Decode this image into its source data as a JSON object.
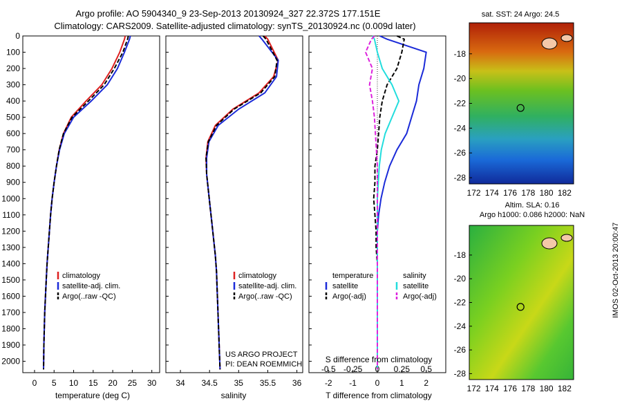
{
  "header": {
    "line1": "Argo profile: AO 5904340_9 23-Sep-2013 20130924_327 22.372S 177.151E",
    "line2": "Climatology: CARS2009. Satellite-adjusted climatology: synTS_20130924.nc (0.009d later)"
  },
  "colors": {
    "climatology": "#dd2020",
    "satellite": "#1a2ad8",
    "argo": "#000000",
    "salinity_satellite": "#22dddd",
    "salinity_argo": "#dd22dd"
  },
  "depth_axis": {
    "ticks": [
      0,
      100,
      200,
      300,
      400,
      500,
      600,
      700,
      800,
      900,
      1000,
      1100,
      1200,
      1300,
      1400,
      1500,
      1600,
      1700,
      1800,
      1900,
      2000
    ],
    "range": [
      0,
      2070
    ]
  },
  "panels": {
    "temperature": {
      "xlabel": "temperature (deg C)",
      "xticks": [
        0,
        5,
        10,
        15,
        20,
        25,
        30
      ],
      "xlim": [
        -3,
        32
      ],
      "legend": [
        "climatology",
        "satellite-adj. clim.",
        "Argo(..raw -QC)"
      ]
    },
    "salinity": {
      "xlabel": "salinity",
      "xticks": [
        34,
        34.5,
        35,
        35.5,
        36
      ],
      "tick_labels": [
        "34",
        "34.5",
        "35",
        "35.5",
        "36"
      ],
      "xlim": [
        33.75,
        36.1
      ],
      "legend": [
        "climatology",
        "satellite-adj. clim.",
        "Argo(..raw -QC)"
      ],
      "credit1": "US ARGO PROJECT",
      "credit2": "PI: DEAN ROEMMICH"
    },
    "difference": {
      "xlabel": "T difference from climatology",
      "top_label": "S difference from climatology",
      "t_ticks": [
        -2,
        -1,
        0,
        1,
        2
      ],
      "t_tick_labels": [
        "-2",
        "-1",
        "0",
        "1",
        "2"
      ],
      "s_ticks": [
        -0.5,
        -0.25,
        0,
        0.25,
        0.5
      ],
      "s_tick_labels": [
        "-0.5",
        "-0.25",
        "0",
        "0.25",
        "0.5"
      ],
      "xlim": [
        -2.8,
        2.8
      ],
      "legend_t_title": "temperature",
      "legend_s_title": "salinity",
      "legend_t": [
        "satellite",
        "Argo(-adj)"
      ],
      "legend_s": [
        "satellite",
        "Argo(-adj)"
      ]
    }
  },
  "maps": {
    "sst_title": "sat. SST: 24 Argo: 24.5",
    "sla_title1": "Altim. SLA: 0.16",
    "sla_title2": "Argo h1000: 0.086 h2000: NaN",
    "lon_ticks": [
      172,
      174,
      176,
      178,
      180,
      182
    ],
    "lat_ticks": [
      -18,
      -20,
      -22,
      -24,
      -26,
      -28
    ],
    "lon_range": [
      171.5,
      183
    ],
    "lat_range": [
      -15.5,
      -28.5
    ],
    "argo_position": {
      "lon": 177.151,
      "lat": -22.372
    }
  },
  "side_label": "IMOS 02-Oct-2013 20:00:47",
  "chart_data": [
    {
      "type": "line",
      "ylabel": "",
      "xlabel": "temperature (deg C)",
      "ylim": [
        0,
        2070
      ],
      "xlim": [
        -3,
        32
      ],
      "series": [
        {
          "name": "climatology",
          "x": [
            23.2,
            23.0,
            21.8,
            19.8,
            17.2,
            13.2,
            9.4,
            7.4,
            6.3,
            5.6,
            5.0,
            4.5,
            4.1,
            3.8,
            3.5,
            3.2,
            3.0,
            2.8,
            2.6,
            2.5,
            2.4,
            2.3
          ],
          "y": [
            0,
            20,
            100,
            200,
            300,
            400,
            500,
            600,
            700,
            800,
            900,
            1000,
            1100,
            1200,
            1300,
            1400,
            1500,
            1600,
            1700,
            1800,
            1900,
            2050
          ]
        },
        {
          "name": "satellite-adj. clim.",
          "x": [
            24.5,
            24.3,
            23.0,
            21.2,
            18.6,
            14.5,
            10.0,
            7.6,
            6.4,
            5.6,
            5.0,
            4.5,
            4.1,
            3.8,
            3.5,
            3.2,
            3.0,
            2.8,
            2.6,
            2.5,
            2.4,
            2.3
          ],
          "y": [
            0,
            20,
            100,
            200,
            300,
            400,
            500,
            600,
            700,
            800,
            900,
            1000,
            1100,
            1200,
            1300,
            1400,
            1500,
            1600,
            1700,
            1800,
            1900,
            2050
          ]
        },
        {
          "name": "Argo(..raw -QC)",
          "x": [
            24.0,
            23.8,
            22.6,
            20.4,
            17.8,
            13.8,
            9.6,
            7.4,
            6.3,
            5.6,
            5.0,
            4.5,
            4.1,
            3.8,
            3.5,
            3.2,
            3.0,
            2.8,
            2.6,
            2.5,
            2.4,
            2.3
          ],
          "y": [
            0,
            20,
            100,
            200,
            300,
            400,
            500,
            600,
            700,
            800,
            900,
            1000,
            1100,
            1200,
            1300,
            1400,
            1500,
            1600,
            1700,
            1800,
            1900,
            2050
          ]
        }
      ]
    },
    {
      "type": "line",
      "xlabel": "salinity",
      "ylim": [
        0,
        2070
      ],
      "xlim": [
        33.75,
        36.1
      ],
      "series": [
        {
          "name": "climatology",
          "x": [
            35.45,
            35.5,
            35.68,
            35.6,
            35.35,
            34.9,
            34.6,
            34.47,
            34.44,
            34.45,
            34.48,
            34.51,
            34.54,
            34.57,
            34.6,
            34.62,
            34.63,
            34.64,
            34.65,
            34.66,
            34.67,
            34.68
          ],
          "y": [
            0,
            20,
            150,
            250,
            350,
            450,
            550,
            650,
            750,
            850,
            950,
            1050,
            1150,
            1250,
            1350,
            1450,
            1550,
            1650,
            1750,
            1850,
            1950,
            2050
          ]
        },
        {
          "name": "satellite-adj. clim.",
          "x": [
            35.35,
            35.4,
            35.68,
            35.65,
            35.45,
            35.0,
            34.65,
            34.49,
            34.45,
            34.45,
            34.48,
            34.51,
            34.54,
            34.57,
            34.6,
            34.62,
            34.63,
            34.64,
            34.65,
            34.66,
            34.67,
            34.68
          ],
          "y": [
            0,
            20,
            150,
            250,
            350,
            450,
            550,
            650,
            750,
            850,
            950,
            1050,
            1150,
            1250,
            1350,
            1450,
            1550,
            1650,
            1750,
            1850,
            1950,
            2050
          ]
        },
        {
          "name": "Argo(..raw -QC)",
          "x": [
            35.42,
            35.47,
            35.66,
            35.62,
            35.38,
            34.92,
            34.62,
            34.48,
            34.44,
            34.45,
            34.48,
            34.51,
            34.54,
            34.57,
            34.6,
            34.62,
            34.63,
            34.64,
            34.65,
            34.66,
            34.67,
            34.68
          ],
          "y": [
            0,
            20,
            150,
            250,
            350,
            450,
            550,
            650,
            750,
            850,
            950,
            1050,
            1150,
            1250,
            1350,
            1450,
            1550,
            1650,
            1750,
            1850,
            1950,
            2050
          ]
        }
      ]
    },
    {
      "type": "line",
      "xlabel": "T difference from climatology",
      "ylim": [
        0,
        2070
      ],
      "xlim": [
        -2.8,
        2.8
      ],
      "series": [
        {
          "name": "satellite",
          "x": [
            0.1,
            0.4,
            2.0,
            1.9,
            1.7,
            1.6,
            1.4,
            1.2,
            0.8,
            0.5,
            0.3,
            0.15,
            0.05,
            0,
            0,
            0,
            0,
            0,
            0,
            0,
            0
          ],
          "y": [
            0,
            20,
            100,
            200,
            300,
            400,
            500,
            600,
            700,
            800,
            900,
            1000,
            1100,
            1200,
            1300,
            1400,
            1500,
            1600,
            1700,
            1800,
            2050
          ]
        },
        {
          "name": "Argo(-adj)",
          "x": [
            0.8,
            1.1,
            1.0,
            0.8,
            0.4,
            0.2,
            0.1,
            0.05,
            0,
            -0.1,
            -0.1,
            -0.15,
            -0.1,
            -0.05,
            -0.05,
            0,
            0,
            0,
            0,
            0,
            0
          ],
          "y": [
            0,
            20,
            100,
            200,
            300,
            400,
            500,
            600,
            700,
            800,
            900,
            1000,
            1100,
            1200,
            1300,
            1400,
            1500,
            1600,
            1700,
            1800,
            2050
          ]
        }
      ]
    },
    {
      "type": "line",
      "xlabel": "S difference from climatology",
      "ylim": [
        0,
        2070
      ],
      "xlim": [
        -0.7,
        0.7
      ],
      "series": [
        {
          "name": "satellite",
          "x": [
            -0.05,
            -0.03,
            0.0,
            0.05,
            0.15,
            0.22,
            0.15,
            0.08,
            0.04,
            0.02,
            0.01,
            0,
            0,
            0,
            0,
            0,
            0,
            0,
            0,
            0,
            0
          ],
          "y": [
            0,
            20,
            100,
            200,
            300,
            400,
            500,
            600,
            700,
            800,
            900,
            1000,
            1100,
            1200,
            1300,
            1400,
            1500,
            1600,
            1700,
            1800,
            2050
          ]
        },
        {
          "name": "Argo(-adj)",
          "x": [
            -0.03,
            -0.06,
            -0.12,
            -0.05,
            -0.08,
            -0.05,
            -0.03,
            -0.02,
            -0.01,
            0,
            0,
            0,
            0,
            0,
            0,
            0,
            0,
            0,
            0,
            0,
            0
          ],
          "y": [
            0,
            20,
            100,
            200,
            300,
            400,
            500,
            600,
            700,
            800,
            900,
            1000,
            1100,
            1200,
            1300,
            1400,
            1500,
            1600,
            1700,
            1800,
            2050
          ]
        }
      ]
    }
  ]
}
